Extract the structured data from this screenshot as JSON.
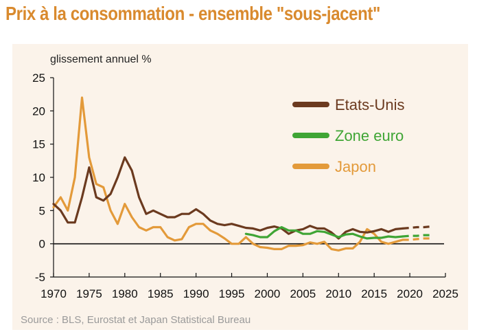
{
  "title": "Prix à la consommation - ensemble \"sous-jacent\"",
  "source": "Source : BLS, Eurostat et Japan Statistical Bureau",
  "chart_data": {
    "type": "line",
    "ylabel": "glissement annuel %",
    "xlim": [
      1970,
      2025
    ],
    "ylim": [
      -5,
      25
    ],
    "xticks": [
      1970,
      1975,
      1980,
      1985,
      1990,
      1995,
      2000,
      2005,
      2010,
      2015,
      2020,
      2025
    ],
    "yticks": [
      -5,
      0,
      5,
      10,
      15,
      20,
      25
    ],
    "series": [
      {
        "name": "Etats-Unis",
        "color": "#6b3a1f",
        "values": [
          [
            1970,
            6
          ],
          [
            1971,
            5
          ],
          [
            1972,
            3.2
          ],
          [
            1973,
            3.2
          ],
          [
            1974,
            7
          ],
          [
            1975,
            11.5
          ],
          [
            1976,
            7
          ],
          [
            1977,
            6.5
          ],
          [
            1978,
            7.5
          ],
          [
            1979,
            10
          ],
          [
            1980,
            13
          ],
          [
            1981,
            11
          ],
          [
            1982,
            7
          ],
          [
            1983,
            4.5
          ],
          [
            1984,
            5
          ],
          [
            1985,
            4.5
          ],
          [
            1986,
            4
          ],
          [
            1987,
            4
          ],
          [
            1988,
            4.5
          ],
          [
            1989,
            4.5
          ],
          [
            1990,
            5.2
          ],
          [
            1991,
            4.5
          ],
          [
            1992,
            3.5
          ],
          [
            1993,
            3
          ],
          [
            1994,
            2.8
          ],
          [
            1995,
            3
          ],
          [
            1996,
            2.7
          ],
          [
            1997,
            2.4
          ],
          [
            1998,
            2.3
          ],
          [
            1999,
            2
          ],
          [
            2000,
            2.4
          ],
          [
            2001,
            2.6
          ],
          [
            2002,
            2.3
          ],
          [
            2003,
            1.5
          ],
          [
            2004,
            2
          ],
          [
            2005,
            2.2
          ],
          [
            2006,
            2.7
          ],
          [
            2007,
            2.3
          ],
          [
            2008,
            2.3
          ],
          [
            2009,
            1.7
          ],
          [
            2010,
            0.8
          ],
          [
            2011,
            1.8
          ],
          [
            2012,
            2.2
          ],
          [
            2013,
            1.8
          ],
          [
            2014,
            1.7
          ],
          [
            2015,
            1.9
          ],
          [
            2016,
            2.2
          ],
          [
            2017,
            1.8
          ],
          [
            2018,
            2.2
          ],
          [
            2019,
            2.3
          ]
        ],
        "forecast": [
          [
            2019,
            2.3
          ],
          [
            2020,
            2.4
          ],
          [
            2021,
            2.5
          ],
          [
            2022,
            2.5
          ],
          [
            2023,
            2.6
          ]
        ]
      },
      {
        "name": "Zone euro",
        "color": "#3fa535",
        "values": [
          [
            1997,
            1.5
          ],
          [
            1998,
            1.3
          ],
          [
            1999,
            1
          ],
          [
            2000,
            1
          ],
          [
            2001,
            1.9
          ],
          [
            2002,
            2.5
          ],
          [
            2003,
            2
          ],
          [
            2004,
            2
          ],
          [
            2005,
            1.5
          ],
          [
            2006,
            1.5
          ],
          [
            2007,
            1.9
          ],
          [
            2008,
            1.8
          ],
          [
            2009,
            1.4
          ],
          [
            2010,
            1
          ],
          [
            2011,
            1.4
          ],
          [
            2012,
            1.5
          ],
          [
            2013,
            1.1
          ],
          [
            2014,
            0.8
          ],
          [
            2015,
            0.9
          ],
          [
            2016,
            0.9
          ],
          [
            2017,
            1.1
          ],
          [
            2018,
            1
          ],
          [
            2019,
            1.1
          ]
        ],
        "forecast": [
          [
            2019,
            1.1
          ],
          [
            2020,
            1.2
          ],
          [
            2021,
            1.2
          ],
          [
            2022,
            1.3
          ],
          [
            2023,
            1.3
          ]
        ]
      },
      {
        "name": "Japon",
        "color": "#e39a3a",
        "values": [
          [
            1970,
            5.5
          ],
          [
            1971,
            7
          ],
          [
            1972,
            5
          ],
          [
            1973,
            10
          ],
          [
            1974,
            22
          ],
          [
            1975,
            13
          ],
          [
            1976,
            9
          ],
          [
            1977,
            8.5
          ],
          [
            1978,
            5
          ],
          [
            1979,
            3
          ],
          [
            1980,
            6
          ],
          [
            1981,
            4
          ],
          [
            1982,
            2.5
          ],
          [
            1983,
            2
          ],
          [
            1984,
            2.5
          ],
          [
            1985,
            2.5
          ],
          [
            1986,
            1
          ],
          [
            1987,
            0.5
          ],
          [
            1988,
            0.7
          ],
          [
            1989,
            2.5
          ],
          [
            1990,
            3
          ],
          [
            1991,
            3
          ],
          [
            1992,
            2
          ],
          [
            1993,
            1.5
          ],
          [
            1994,
            0.8
          ],
          [
            1995,
            0
          ],
          [
            1996,
            0
          ],
          [
            1997,
            1
          ],
          [
            1998,
            0
          ],
          [
            1999,
            -0.5
          ],
          [
            2000,
            -0.6
          ],
          [
            2001,
            -0.8
          ],
          [
            2002,
            -0.8
          ],
          [
            2003,
            -0.3
          ],
          [
            2004,
            -0.3
          ],
          [
            2005,
            -0.2
          ],
          [
            2006,
            0.2
          ],
          [
            2007,
            0
          ],
          [
            2008,
            0.3
          ],
          [
            2009,
            -0.8
          ],
          [
            2010,
            -1
          ],
          [
            2011,
            -0.7
          ],
          [
            2012,
            -0.7
          ],
          [
            2013,
            0.3
          ],
          [
            2014,
            2.2
          ],
          [
            2015,
            1.5
          ],
          [
            2016,
            0.3
          ],
          [
            2017,
            0
          ],
          [
            2018,
            0.3
          ],
          [
            2019,
            0.6
          ]
        ],
        "forecast": [
          [
            2019,
            0.6
          ],
          [
            2020,
            0.6
          ],
          [
            2021,
            0.7
          ],
          [
            2022,
            0.8
          ],
          [
            2023,
            0.8
          ]
        ]
      }
    ],
    "legend_placement": "top-right"
  }
}
